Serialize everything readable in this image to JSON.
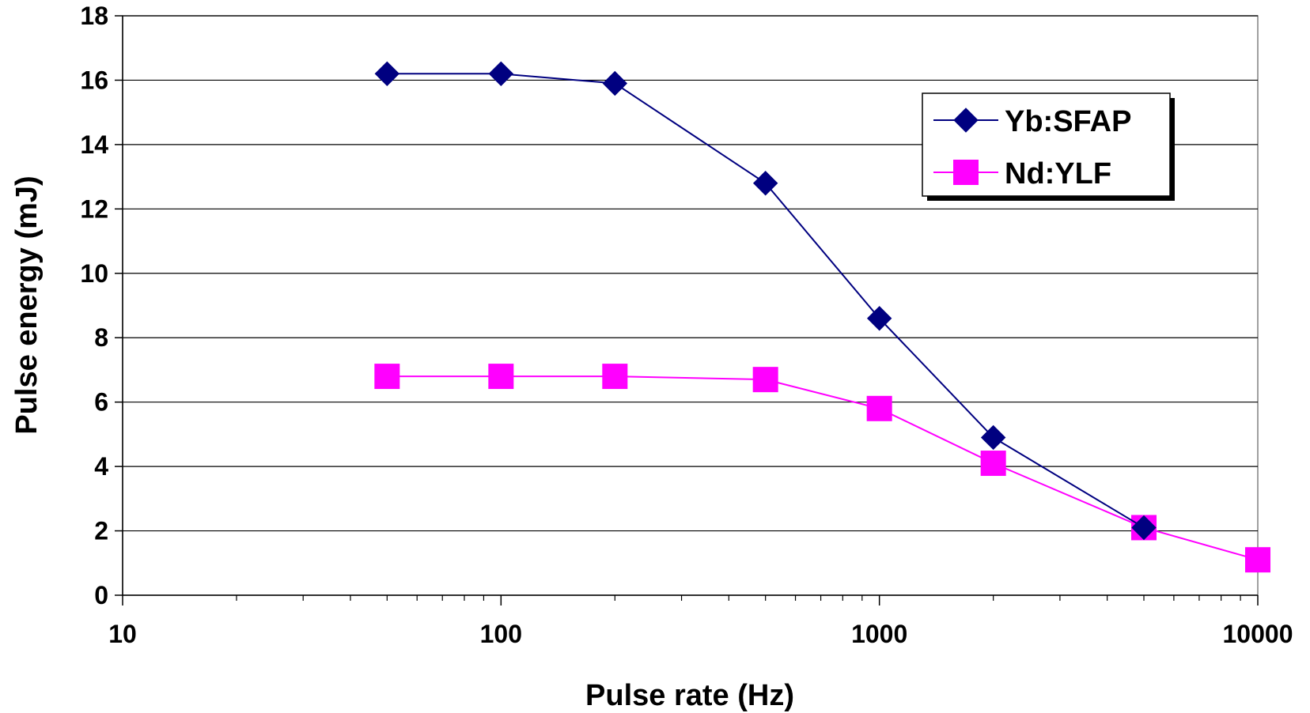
{
  "chart_data": {
    "type": "line",
    "xscale": "log",
    "xlabel": "Pulse rate (Hz)",
    "ylabel": "Pulse energy (mJ)",
    "xlim": [
      10,
      10000
    ],
    "ylim": [
      0,
      18
    ],
    "x_ticks": [
      "10",
      "100",
      "1000",
      "10000"
    ],
    "y_ticks": [
      "0",
      "2",
      "4",
      "6",
      "8",
      "10",
      "12",
      "14",
      "16",
      "18"
    ],
    "grid": "horizontal",
    "legend_position": "top-right",
    "series": [
      {
        "name": "Yb:SFAP",
        "color": "#000080",
        "marker": "diamond",
        "x": [
          50,
          100,
          200,
          500,
          1000,
          2000,
          5000
        ],
        "y": [
          16.2,
          16.2,
          15.9,
          12.8,
          8.6,
          4.9,
          2.1
        ]
      },
      {
        "name": "Nd:YLF",
        "color": "#FF00FF",
        "marker": "square",
        "x": [
          50,
          100,
          200,
          500,
          1000,
          2000,
          5000,
          10000
        ],
        "y": [
          6.8,
          6.8,
          6.8,
          6.7,
          5.8,
          4.1,
          2.1,
          1.1
        ]
      }
    ]
  }
}
